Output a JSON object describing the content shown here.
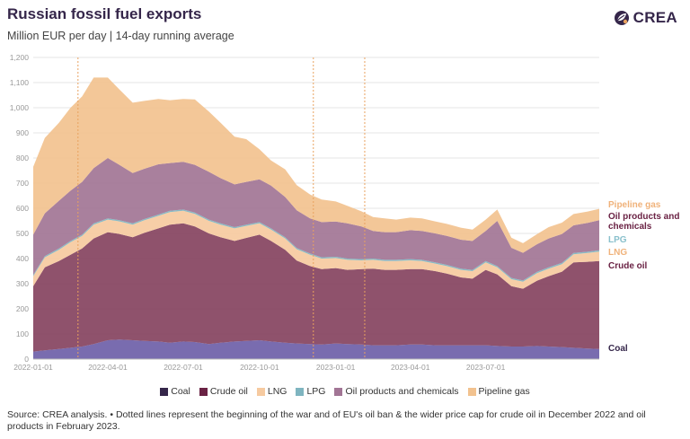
{
  "header": {
    "title": "Russian fossil fuel exports",
    "subtitle": "Million EUR per day | 14-day running average"
  },
  "logo": {
    "text": "CREA",
    "icon": "crea-leaf-icon"
  },
  "footer": {
    "note": "Source: CREA analysis. • Dotted lines represent the beginning of the war and of EU's oil ban & the wider price cap for crude oil in December 2022 and oil products in February 2023."
  },
  "chart_data": {
    "type": "area",
    "stacked": true,
    "ylim": [
      0,
      1200
    ],
    "yticks": [
      0,
      100,
      200,
      300,
      400,
      500,
      600,
      700,
      800,
      900,
      1000,
      1100,
      1200
    ],
    "ytick_labels": [
      "0",
      "100",
      "200",
      "300",
      "400",
      "500",
      "600",
      "700",
      "800",
      "900",
      "1,000",
      "1,100",
      "1,200"
    ],
    "xlim": [
      "2022-01-01",
      "2023-11-15"
    ],
    "xticks": [
      "2022-01-01",
      "2022-04-01",
      "2022-07-01",
      "2022-10-01",
      "2023-01-01",
      "2023-04-01",
      "2023-07-01"
    ],
    "grid": true,
    "legend_position": "bottom",
    "x": [
      "2022-01-01",
      "2022-01-15",
      "2022-02-01",
      "2022-02-15",
      "2022-03-01",
      "2022-03-15",
      "2022-04-01",
      "2022-04-15",
      "2022-05-01",
      "2022-05-15",
      "2022-06-01",
      "2022-06-15",
      "2022-07-01",
      "2022-07-15",
      "2022-08-01",
      "2022-08-15",
      "2022-09-01",
      "2022-09-15",
      "2022-10-01",
      "2022-10-15",
      "2022-11-01",
      "2022-11-15",
      "2022-12-01",
      "2022-12-15",
      "2023-01-01",
      "2023-01-15",
      "2023-02-01",
      "2023-02-15",
      "2023-03-01",
      "2023-03-15",
      "2023-04-01",
      "2023-04-15",
      "2023-05-01",
      "2023-05-15",
      "2023-06-01",
      "2023-06-15",
      "2023-07-01",
      "2023-07-15",
      "2023-08-01",
      "2023-08-15",
      "2023-09-01",
      "2023-09-15",
      "2023-10-01",
      "2023-10-15",
      "2023-11-01",
      "2023-11-15"
    ],
    "series": [
      {
        "name": "Coal",
        "color": "#6e5fa8",
        "values": [
          30,
          35,
          40,
          45,
          50,
          60,
          75,
          78,
          75,
          72,
          70,
          65,
          70,
          68,
          60,
          65,
          70,
          72,
          75,
          70,
          65,
          62,
          60,
          58,
          62,
          60,
          58,
          55,
          55,
          55,
          58,
          58,
          55,
          55,
          55,
          55,
          55,
          52,
          50,
          50,
          52,
          50,
          48,
          45,
          42,
          40
        ]
      },
      {
        "name": "Crude oil",
        "color": "#85435f",
        "values": [
          260,
          330,
          350,
          370,
          390,
          420,
          430,
          420,
          410,
          430,
          450,
          470,
          470,
          460,
          440,
          420,
          400,
          410,
          420,
          400,
          370,
          330,
          310,
          300,
          300,
          295,
          300,
          305,
          300,
          300,
          300,
          300,
          295,
          285,
          270,
          265,
          300,
          285,
          240,
          230,
          260,
          280,
          300,
          340,
          345,
          350
        ]
      },
      {
        "name": "LNG",
        "color": "#f6caa0",
        "values": [
          40,
          40,
          45,
          50,
          50,
          55,
          50,
          50,
          50,
          50,
          50,
          50,
          50,
          50,
          50,
          50,
          50,
          48,
          45,
          45,
          45,
          45,
          45,
          42,
          40,
          40,
          35,
          35,
          35,
          35,
          35,
          32,
          30,
          30,
          30,
          30,
          30,
          28,
          28,
          28,
          30,
          30,
          30,
          32,
          35,
          38
        ]
      },
      {
        "name": "LPG",
        "color": "#7fb5c0",
        "values": [
          5,
          5,
          5,
          5,
          5,
          5,
          5,
          5,
          5,
          5,
          5,
          5,
          5,
          5,
          5,
          5,
          5,
          5,
          5,
          5,
          5,
          5,
          5,
          5,
          5,
          5,
          5,
          5,
          5,
          5,
          5,
          5,
          5,
          5,
          5,
          5,
          5,
          5,
          5,
          5,
          5,
          5,
          5,
          5,
          5,
          5
        ]
      },
      {
        "name": "Oil products and chemicals",
        "color": "#a27595",
        "values": [
          160,
          170,
          190,
          200,
          210,
          220,
          240,
          220,
          200,
          200,
          200,
          190,
          190,
          190,
          190,
          180,
          170,
          170,
          170,
          170,
          160,
          150,
          140,
          140,
          140,
          140,
          130,
          110,
          110,
          110,
          115,
          115,
          115,
          115,
          115,
          115,
          120,
          180,
          120,
          110,
          110,
          115,
          115,
          110,
          115,
          120
        ]
      },
      {
        "name": "Pipeline gas",
        "color": "#f2c28f",
        "values": [
          270,
          300,
          310,
          330,
          340,
          360,
          320,
          300,
          280,
          270,
          260,
          250,
          250,
          260,
          240,
          220,
          190,
          170,
          120,
          100,
          110,
          100,
          95,
          90,
          80,
          70,
          60,
          55,
          55,
          50,
          50,
          50,
          48,
          48,
          48,
          45,
          45,
          45,
          40,
          38,
          40,
          45,
          45,
          45,
          45,
          45
        ]
      }
    ],
    "annotations": [
      "2022-02-24",
      "2022-12-05",
      "2023-02-05"
    ]
  }
}
